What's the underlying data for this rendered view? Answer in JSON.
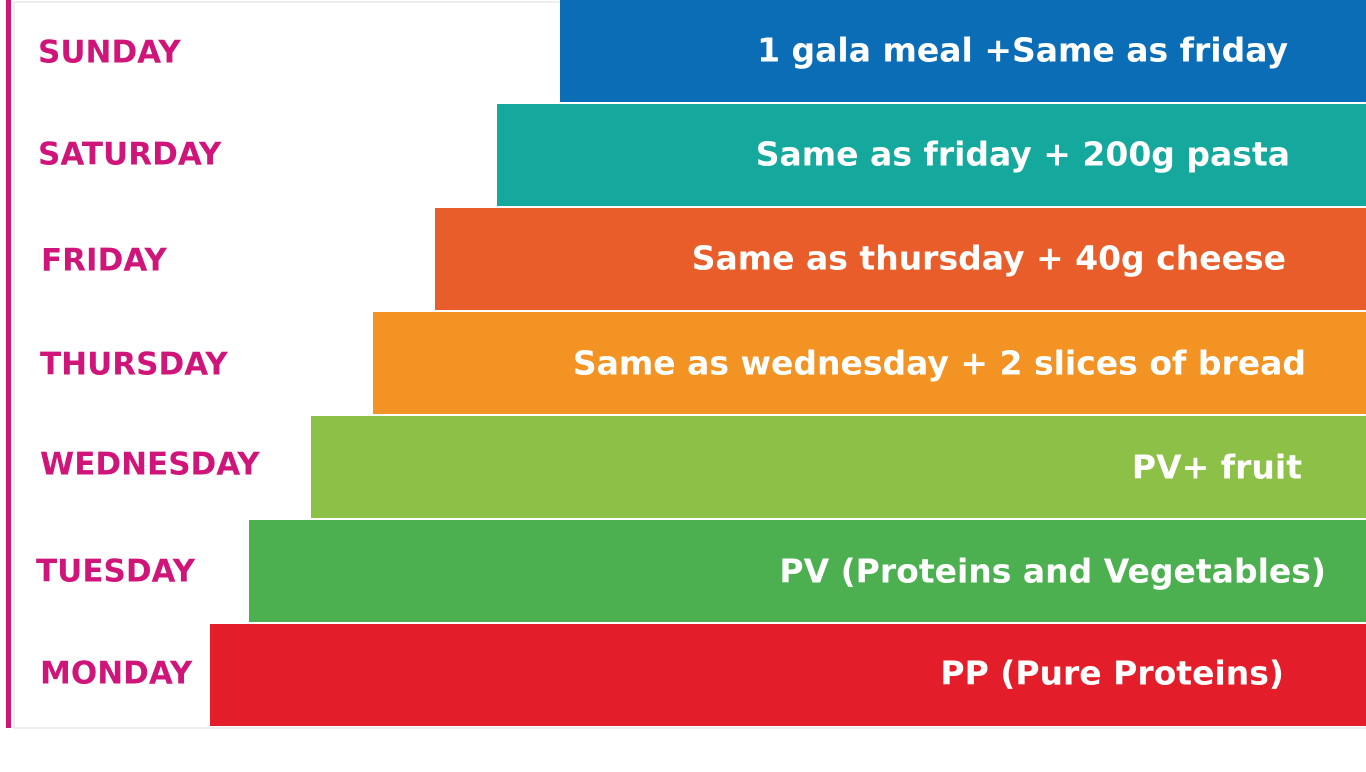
{
  "rows": [
    {
      "day": "SUNDAY",
      "text": "1  gala meal +Same as friday"
    },
    {
      "day": "SATURDAY",
      "text": "Same as friday +  200g pasta"
    },
    {
      "day": "FRIDAY",
      "text": "Same as thursday + 40g cheese"
    },
    {
      "day": "THURSDAY",
      "text": "Same as wednesday + 2 slices of bread"
    },
    {
      "day": "WEDNESDAY",
      "text": "PV+ fruit"
    },
    {
      "day": "TUESDAY",
      "text": "PV (Proteins and Vegetables)"
    },
    {
      "day": "MONDAY",
      "text": "PP (Pure Proteins)"
    }
  ]
}
